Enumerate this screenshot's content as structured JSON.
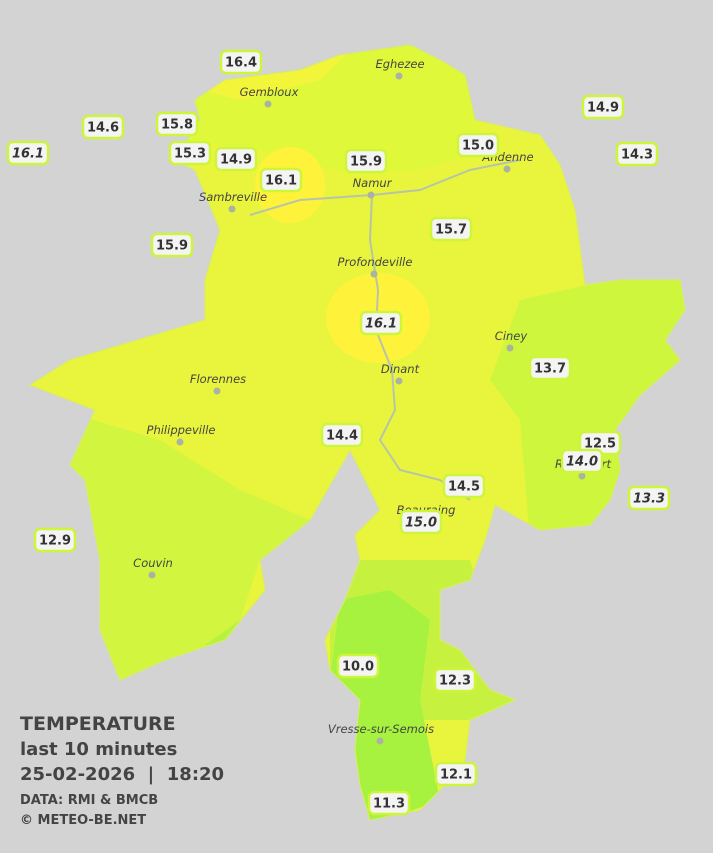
{
  "title": "TEMPERATURE",
  "subtitle": "last 10 minutes",
  "timestamp": "25-02-2026  |  18:20",
  "credits": [
    "DATA: RMI & BMCB",
    "© METEO-BE.NET"
  ],
  "cities": [
    {
      "name": "Eghezee"
    },
    {
      "name": "Gembloux"
    },
    {
      "name": "Andenne"
    },
    {
      "name": "Namur"
    },
    {
      "name": "Sambreville"
    },
    {
      "name": "Profondeville"
    },
    {
      "name": "Ciney"
    },
    {
      "name": "Dinant"
    },
    {
      "name": "Florennes"
    },
    {
      "name": "Philippeville"
    },
    {
      "name": "Rochefort"
    },
    {
      "name": "Beauraing"
    },
    {
      "name": "Couvin"
    },
    {
      "name": "Vresse-sur-Semois"
    }
  ],
  "stations": [
    {
      "value": 16.4
    },
    {
      "value": 14.6
    },
    {
      "value": 16.1,
      "italic": true
    },
    {
      "value": 15.8
    },
    {
      "value": 15.3
    },
    {
      "value": 14.9
    },
    {
      "value": 16.1
    },
    {
      "value": 15.9
    },
    {
      "value": 15.0,
      "label": "15.0"
    },
    {
      "value": 14.9
    },
    {
      "value": 14.3
    },
    {
      "value": 15.9
    },
    {
      "value": 15.7
    },
    {
      "value": 16.1,
      "italic": true
    },
    {
      "value": 13.7
    },
    {
      "value": 14.4
    },
    {
      "value": 12.5
    },
    {
      "value": 14.0,
      "label": "14.0",
      "italic": true
    },
    {
      "value": 13.3,
      "italic": true
    },
    {
      "value": 14.5
    },
    {
      "value": 15.0,
      "label": "15.0",
      "italic": true
    },
    {
      "value": 12.9
    },
    {
      "value": 10.0,
      "label": "10.0"
    },
    {
      "value": 12.3
    },
    {
      "value": 12.1
    },
    {
      "value": 11.3
    }
  ]
}
